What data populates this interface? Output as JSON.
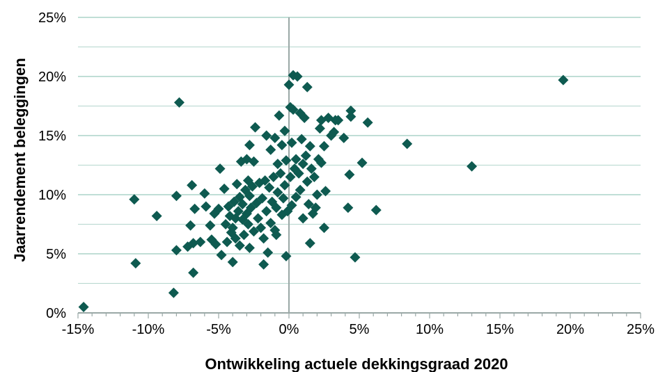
{
  "chart_data": {
    "type": "scatter",
    "title": "",
    "xlabel": "Ontwikkeling actuele dekkingsgraad 2020",
    "ylabel": "Jaarrendement beleggingen",
    "xlim": [
      -15,
      25
    ],
    "ylim": [
      0,
      25
    ],
    "x_ticks": [
      "-15%",
      "-10%",
      "-5%",
      "0%",
      "5%",
      "10%",
      "15%",
      "20%",
      "25%"
    ],
    "y_ticks": [
      "0%",
      "5%",
      "10%",
      "15%",
      "20%",
      "25%"
    ],
    "grid": "horizontal",
    "legend": "none",
    "marker": "diamond",
    "colors": {
      "marker": "#0e5a50",
      "grid": "#9bc9bd",
      "axis": "#9aa8a6"
    },
    "points": [
      [
        -14.6,
        0.5
      ],
      [
        -11.0,
        9.6
      ],
      [
        -10.9,
        4.2
      ],
      [
        -9.4,
        8.2
      ],
      [
        -8.2,
        1.7
      ],
      [
        -8.0,
        9.9
      ],
      [
        -7.8,
        17.8
      ],
      [
        -8.0,
        5.3
      ],
      [
        -7.2,
        5.6
      ],
      [
        -7.0,
        7.4
      ],
      [
        -6.9,
        10.8
      ],
      [
        -6.8,
        5.9
      ],
      [
        -6.8,
        3.4
      ],
      [
        -6.7,
        8.8
      ],
      [
        -6.3,
        6.0
      ],
      [
        -6.0,
        10.1
      ],
      [
        -5.9,
        9.0
      ],
      [
        -5.6,
        7.4
      ],
      [
        -5.5,
        6.2
      ],
      [
        -5.3,
        8.4
      ],
      [
        -5.2,
        5.8
      ],
      [
        -5.0,
        8.8
      ],
      [
        -4.9,
        12.2
      ],
      [
        -4.8,
        4.9
      ],
      [
        -4.6,
        10.5
      ],
      [
        -4.5,
        7.5
      ],
      [
        -4.4,
        6.0
      ],
      [
        -4.3,
        9.0
      ],
      [
        -4.2,
        8.2
      ],
      [
        -4.1,
        6.8
      ],
      [
        -4.0,
        4.3
      ],
      [
        -4.0,
        7.2
      ],
      [
        -3.9,
        9.4
      ],
      [
        -3.8,
        8.0
      ],
      [
        -3.8,
        6.3
      ],
      [
        -3.7,
        10.9
      ],
      [
        -3.6,
        8.6
      ],
      [
        -3.5,
        9.8
      ],
      [
        -3.5,
        5.7
      ],
      [
        -3.4,
        12.8
      ],
      [
        -3.3,
        7.9
      ],
      [
        -3.3,
        9.2
      ],
      [
        -3.2,
        6.6
      ],
      [
        -3.1,
        10.4
      ],
      [
        -3.0,
        8.4
      ],
      [
        -3.0,
        13.0
      ],
      [
        -2.9,
        11.2
      ],
      [
        -2.9,
        7.5
      ],
      [
        -2.8,
        14.2
      ],
      [
        -2.8,
        9.9
      ],
      [
        -2.8,
        5.5
      ],
      [
        -2.7,
        8.9
      ],
      [
        -2.6,
        10.7
      ],
      [
        -2.5,
        6.9
      ],
      [
        -2.5,
        12.8
      ],
      [
        -2.4,
        15.7
      ],
      [
        -2.3,
        9.3
      ],
      [
        -2.2,
        8.0
      ],
      [
        -2.1,
        11.0
      ],
      [
        -2.0,
        7.2
      ],
      [
        -1.9,
        9.7
      ],
      [
        -1.8,
        6.3
      ],
      [
        -1.8,
        4.1
      ],
      [
        -1.7,
        11.2
      ],
      [
        -1.6,
        15.0
      ],
      [
        -1.6,
        8.6
      ],
      [
        -1.5,
        5.1
      ],
      [
        -1.4,
        10.6
      ],
      [
        -1.3,
        7.6
      ],
      [
        -1.3,
        13.8
      ],
      [
        -1.2,
        9.4
      ],
      [
        -1.1,
        11.5
      ],
      [
        -1.0,
        7.0
      ],
      [
        -1.0,
        14.8
      ],
      [
        -0.9,
        8.9
      ],
      [
        -0.9,
        6.6
      ],
      [
        -0.8,
        12.6
      ],
      [
        -0.8,
        10.2
      ],
      [
        -0.7,
        16.7
      ],
      [
        -0.6,
        11.8
      ],
      [
        -0.5,
        8.3
      ],
      [
        -0.5,
        14.2
      ],
      [
        -0.4,
        9.7
      ],
      [
        -0.3,
        15.4
      ],
      [
        -0.3,
        10.8
      ],
      [
        -0.2,
        4.8
      ],
      [
        -0.2,
        12.9
      ],
      [
        -0.1,
        8.6
      ],
      [
        0.0,
        19.3
      ],
      [
        0.1,
        17.4
      ],
      [
        0.1,
        11.5
      ],
      [
        0.2,
        9.1
      ],
      [
        0.2,
        14.4
      ],
      [
        0.3,
        20.1
      ],
      [
        0.3,
        17.2
      ],
      [
        0.4,
        12.2
      ],
      [
        0.5,
        9.8
      ],
      [
        0.5,
        13.0
      ],
      [
        0.6,
        20.0
      ],
      [
        0.7,
        11.8
      ],
      [
        0.8,
        16.9
      ],
      [
        0.8,
        10.4
      ],
      [
        0.9,
        14.7
      ],
      [
        1.0,
        12.6
      ],
      [
        1.0,
        8.0
      ],
      [
        1.1,
        16.5
      ],
      [
        1.2,
        13.3
      ],
      [
        1.3,
        19.1
      ],
      [
        1.3,
        11.1
      ],
      [
        1.4,
        9.2
      ],
      [
        1.5,
        14.1
      ],
      [
        1.5,
        5.9
      ],
      [
        1.6,
        12.2
      ],
      [
        1.7,
        8.4
      ],
      [
        1.8,
        11.5
      ],
      [
        1.9,
        8.9
      ],
      [
        2.0,
        10.0
      ],
      [
        2.1,
        13.0
      ],
      [
        2.2,
        15.6
      ],
      [
        2.3,
        16.3
      ],
      [
        2.3,
        12.7
      ],
      [
        2.5,
        14.1
      ],
      [
        2.5,
        7.2
      ],
      [
        2.6,
        10.3
      ],
      [
        2.8,
        16.5
      ],
      [
        3.0,
        15.0
      ],
      [
        3.2,
        15.3
      ],
      [
        3.3,
        16.3
      ],
      [
        3.5,
        16.3
      ],
      [
        3.9,
        14.8
      ],
      [
        4.2,
        8.9
      ],
      [
        4.3,
        11.7
      ],
      [
        4.4,
        17.1
      ],
      [
        4.4,
        16.6
      ],
      [
        4.7,
        4.7
      ],
      [
        5.2,
        12.7
      ],
      [
        5.6,
        16.1
      ],
      [
        6.2,
        8.7
      ],
      [
        8.4,
        14.3
      ],
      [
        13.0,
        12.4
      ],
      [
        19.5,
        19.7
      ]
    ]
  }
}
